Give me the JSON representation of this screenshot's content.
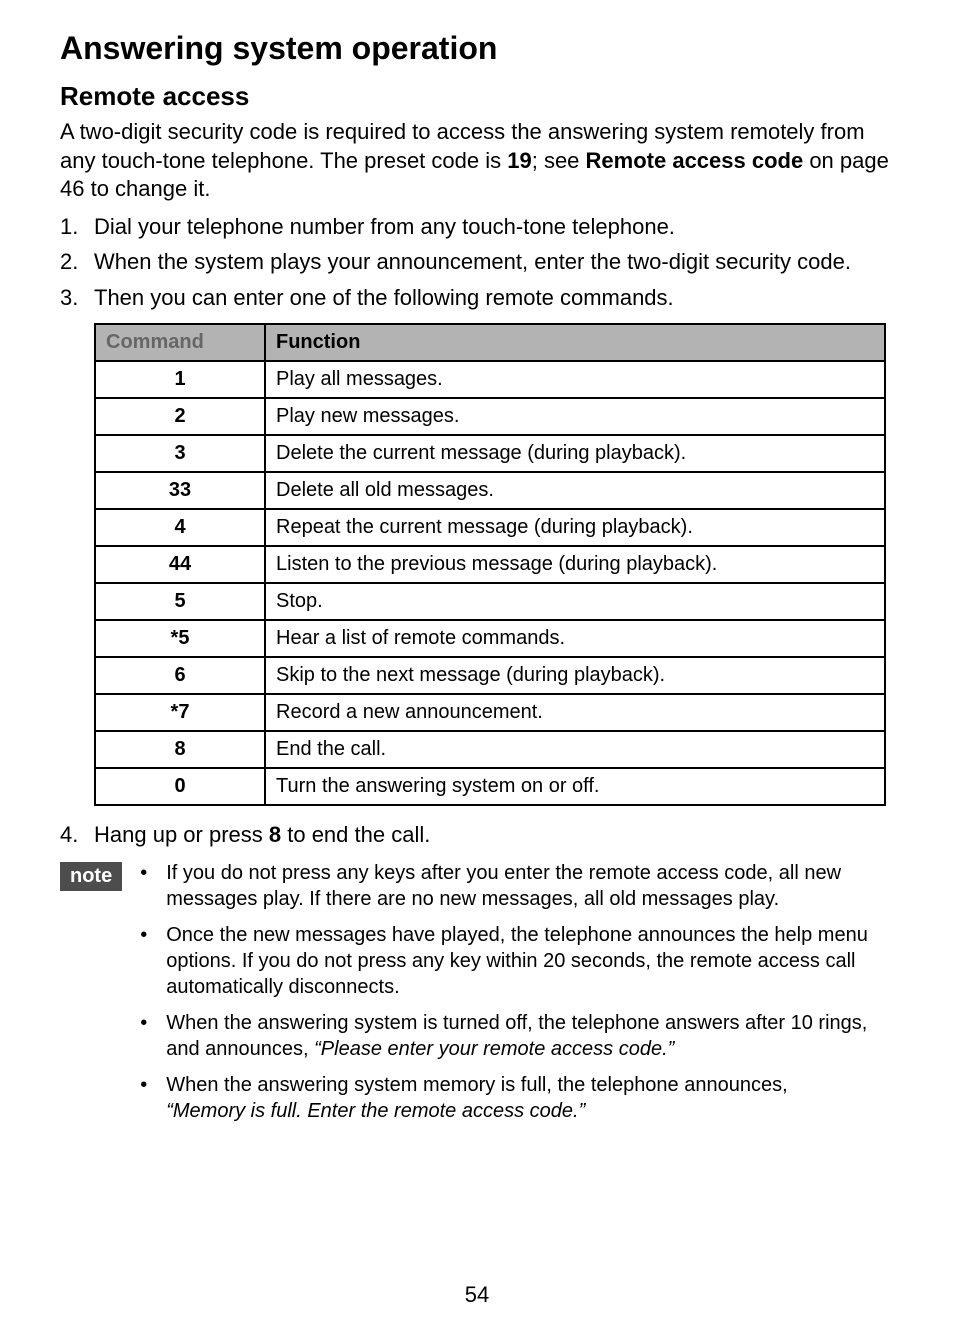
{
  "title": "Answering system operation",
  "section_title": "Remote access",
  "intro": {
    "pre": "A two-digit security code is required to access the answering system remotely from any touch-tone telephone. The preset code is ",
    "code": "19",
    "mid": "; see ",
    "ref": "Remote access code",
    "post": " on page 46 to change it."
  },
  "steps": {
    "s1": {
      "n": "1.",
      "t": "Dial your telephone number from any touch-tone telephone."
    },
    "s2": {
      "n": "2.",
      "t": "When the system plays your announcement, enter the two-digit security code."
    },
    "s3": {
      "n": "3.",
      "t": "Then you can enter one of the following remote commands."
    },
    "s4": {
      "n": "4.",
      "pre": "Hang up or press ",
      "key": "8",
      "post": " to end the call."
    }
  },
  "table": {
    "head_cmd": "Command",
    "head_fn": "Function",
    "rows": {
      "r0": {
        "c": "1",
        "f": "Play all messages."
      },
      "r1": {
        "c": "2",
        "f": "Play new messages."
      },
      "r2": {
        "c": "3",
        "f": "Delete the current message (during playback)."
      },
      "r3": {
        "c": "33",
        "f": "Delete all old messages."
      },
      "r4": {
        "c": "4",
        "f": "Repeat the current message (during playback)."
      },
      "r5": {
        "c": "44",
        "f": "Listen to the previous message (during playback)."
      },
      "r6": {
        "c": "5",
        "f": "Stop."
      },
      "r7": {
        "c": "*5",
        "f": "Hear a list of remote commands."
      },
      "r8": {
        "c": "6",
        "f": "Skip to the next message (during playback)."
      },
      "r9": {
        "c": "*7",
        "f": "Record a new announcement."
      },
      "r10": {
        "c": "8",
        "f": "End the call."
      },
      "r11": {
        "c": "0",
        "f": "Turn the answering system on or off."
      }
    }
  },
  "note_label": "note",
  "notes": {
    "n0": {
      "t": "If you do not press any keys after you enter the remote access code, all new messages play. If there are no new messages, all old messages play."
    },
    "n1": {
      "t": "Once the new messages have played, the telephone announces the help menu options. If you do not press any key within 20 seconds, the remote access call automatically disconnects."
    },
    "n2": {
      "pre": "When the answering system is turned off, the telephone answers after 10 rings, and announces, ",
      "it": "“Please enter your remote access code.”"
    },
    "n3": {
      "pre": "When the answering system memory is full, the telephone announces, ",
      "it": "“Memory is full. Enter the remote access code.”"
    }
  },
  "page_number": "54"
}
